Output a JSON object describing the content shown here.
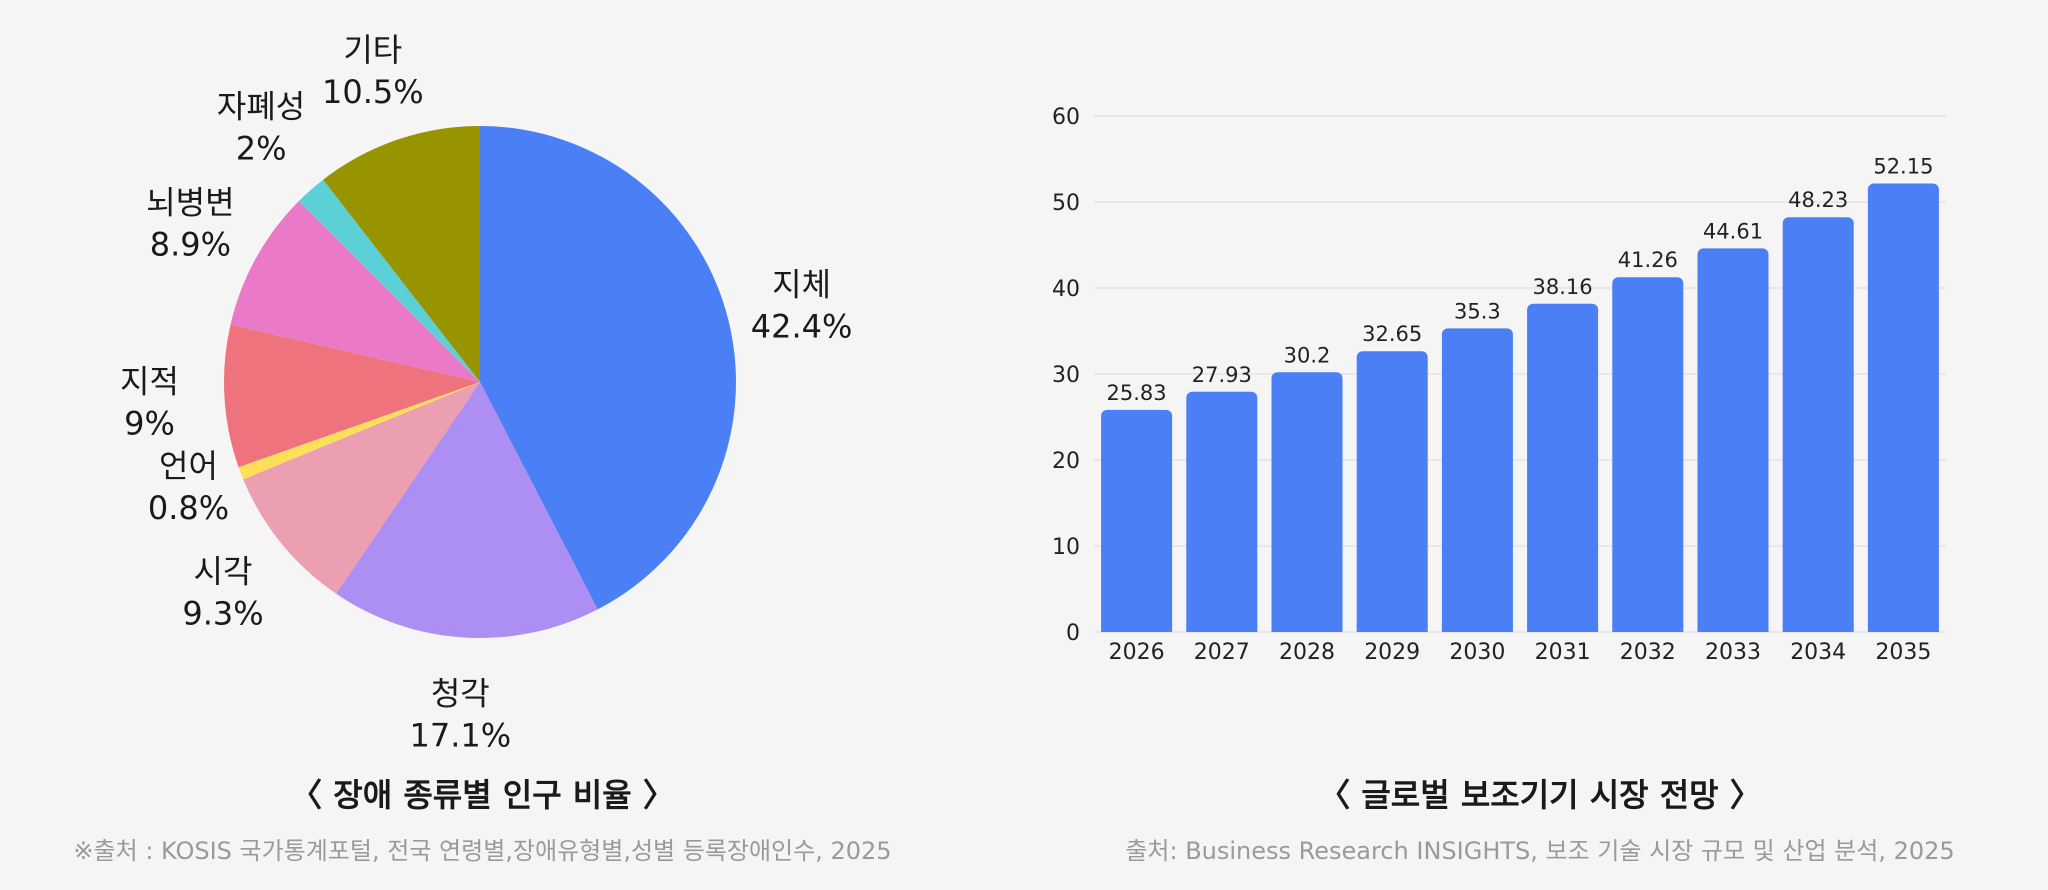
{
  "chart_data": [
    {
      "type": "pie",
      "title": "〈 장애 종류별 인구 비율 〉",
      "source": "※출처 : KOSIS 국가통계포털, 전국 연령별,장애유형별,성별 등록장애인수, 2025",
      "slices": [
        {
          "label": "지체",
          "value": 42.4,
          "value_label": "42.4%",
          "color": "#4a7ff5"
        },
        {
          "label": "청각",
          "value": 17.1,
          "value_label": "17.1%",
          "color": "#ad8ef3"
        },
        {
          "label": "시각",
          "value": 9.3,
          "value_label": "9.3%",
          "color": "#eb9fb1"
        },
        {
          "label": "언어",
          "value": 0.8,
          "value_label": "0.8%",
          "color": "#fde05a"
        },
        {
          "label": "지적",
          "value": 9,
          "value_label": "9%",
          "color": "#ee737c"
        },
        {
          "label": "뇌병변",
          "value": 8.9,
          "value_label": "8.9%",
          "color": "#ea7ac7"
        },
        {
          "label": "자폐성",
          "value": 2,
          "value_label": "2%",
          "color": "#5bd0d6"
        },
        {
          "label": "기타",
          "value": 10.5,
          "value_label": "10.5%",
          "color": "#979400"
        }
      ]
    },
    {
      "type": "bar",
      "title": "〈 글로벌 보조기기 시장 전망 〉",
      "source": "출처: Business Research INSIGHTS,  보조 기술 시장 규모 및 산업 분석, 2025",
      "categories": [
        "2026",
        "2027",
        "2028",
        "2029",
        "2030",
        "2031",
        "2032",
        "2033",
        "2034",
        "2035"
      ],
      "values": [
        25.83,
        27.93,
        30.2,
        32.65,
        35.3,
        38.16,
        41.26,
        44.61,
        48.23,
        52.15
      ],
      "value_labels": [
        "25.83",
        "27.93",
        "30.2",
        "32.65",
        "35.3",
        "38.16",
        "41.26",
        "44.61",
        "48.23",
        "52.15"
      ],
      "ylim": [
        0,
        60
      ],
      "yticks": [
        "0",
        "10",
        "20",
        "30",
        "40",
        "50",
        "60"
      ],
      "grid": true,
      "color": "#4a7ff5"
    }
  ]
}
